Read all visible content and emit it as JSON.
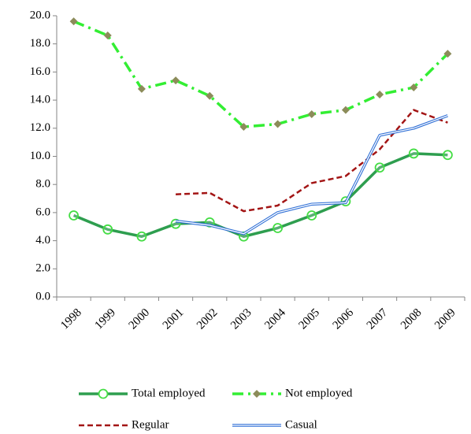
{
  "chart_data": {
    "type": "line",
    "categories": [
      "1998",
      "1999",
      "2000",
      "2001",
      "2002",
      "2003",
      "2004",
      "2005",
      "2006",
      "2007",
      "2008",
      "2009"
    ],
    "ylim": [
      0,
      20
    ],
    "yticks": [
      {
        "value": 0,
        "label": "0.0"
      },
      {
        "value": 2,
        "label": "2.0"
      },
      {
        "value": 4,
        "label": "4.0"
      },
      {
        "value": 6,
        "label": "6.0"
      },
      {
        "value": 8,
        "label": "8.0"
      },
      {
        "value": 10,
        "label": "10.0"
      },
      {
        "value": 12,
        "label": "12.0"
      },
      {
        "value": 14,
        "label": "14.0"
      },
      {
        "value": 16,
        "label": "16.0"
      },
      {
        "value": 18,
        "label": "18.0"
      },
      {
        "value": 20,
        "label": "20.0"
      }
    ],
    "grid": false,
    "series": [
      {
        "name": "Total employed",
        "color": "#2e9e4f",
        "marker": "circle",
        "dash": "solid",
        "values": [
          5.8,
          4.8,
          4.3,
          5.2,
          5.3,
          4.3,
          4.9,
          5.8,
          6.8,
          9.2,
          10.2,
          10.1
        ]
      },
      {
        "name": "Not employed",
        "color": "#33ee33",
        "marker": "diamond",
        "dash": "dashdot",
        "values": [
          19.6,
          18.6,
          14.8,
          15.4,
          14.3,
          12.1,
          12.3,
          13.0,
          13.3,
          14.4,
          14.9,
          17.3
        ]
      },
      {
        "name": "Regular",
        "color": "#a31515",
        "marker": "none",
        "dash": "dash",
        "values": [
          null,
          null,
          null,
          7.3,
          7.4,
          6.1,
          6.5,
          8.1,
          8.6,
          10.5,
          13.3,
          12.4
        ]
      },
      {
        "name": "Casual",
        "color": "#2f6fd6",
        "marker": "none",
        "dash": "double",
        "values": [
          null,
          null,
          null,
          5.4,
          5.1,
          4.5,
          6.0,
          6.6,
          6.7,
          11.5,
          12.0,
          12.9
        ]
      }
    ]
  }
}
